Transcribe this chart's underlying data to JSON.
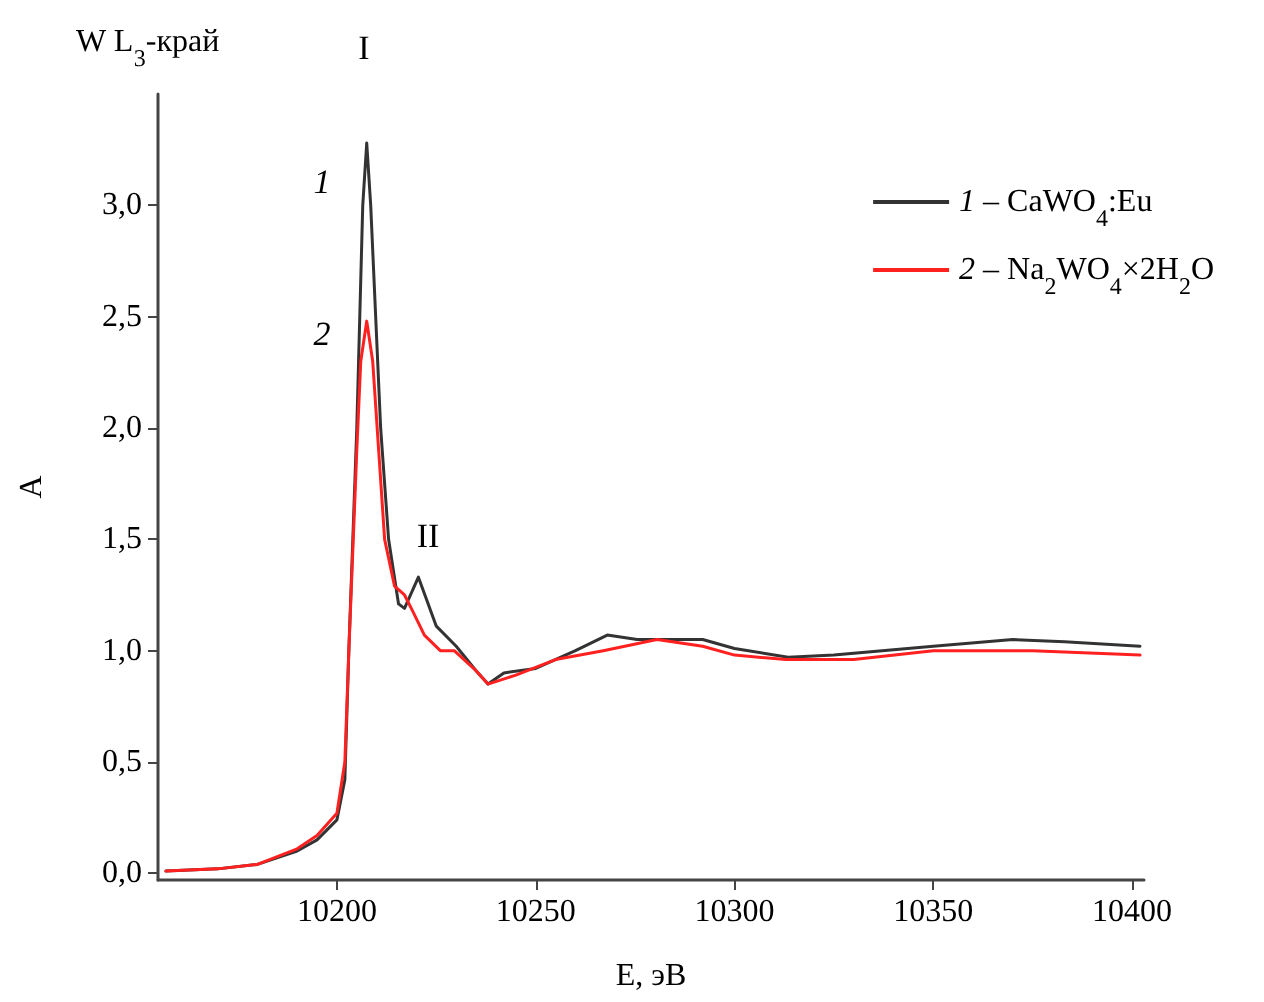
{
  "chart_data": {
    "type": "line",
    "title": "W L$_{3}$-край",
    "xlabel": "E, эВ",
    "ylabel": "A",
    "xlim": [
      10155,
      10403
    ],
    "xticks": [
      10200,
      10250,
      10300,
      10350,
      10400
    ],
    "ylim": [
      -0.03,
      3.5
    ],
    "yticks": [
      {
        "value": 0,
        "label": "0,0"
      },
      {
        "value": 0.5,
        "label": "0,5"
      },
      {
        "value": 1,
        "label": "1,0"
      },
      {
        "value": 1.5,
        "label": "1,5"
      },
      {
        "value": 2,
        "label": "2,0"
      },
      {
        "value": 2.5,
        "label": "2,5"
      },
      {
        "value": 3,
        "label": "3,0"
      }
    ],
    "grid": false,
    "legend": "top right",
    "marker": "none",
    "line_style": "solid",
    "annotations": [
      "I",
      "1",
      "2",
      "II"
    ],
    "series": [
      {
        "name": "1 – CaWO$_{4}$:Eu",
        "color": "#333333",
        "x": [
          10157,
          10170,
          10180,
          10190,
          10195,
          10200,
          10202,
          10203,
          10205,
          10206.5,
          10207.5,
          10208.5,
          10211,
          10213,
          10215.5,
          10217,
          10220.5,
          10225,
          10230,
          10235,
          10238,
          10242,
          10250,
          10260,
          10268,
          10275.5,
          10285,
          10292,
          10300,
          10313.5,
          10325,
          10350,
          10370,
          10383,
          10402
        ],
        "values": [
          0.01,
          0.02,
          0.04,
          0.1,
          0.15,
          0.24,
          0.42,
          1.0,
          2.0,
          3.0,
          3.28,
          3.0,
          2.0,
          1.5,
          1.21,
          1.19,
          1.33,
          1.11,
          1.02,
          0.91,
          0.85,
          0.9,
          0.92,
          1.0,
          1.07,
          1.05,
          1.05,
          1.05,
          1.01,
          0.97,
          0.98,
          1.02,
          1.05,
          1.04,
          1.02
        ]
      },
      {
        "name": "2 – Na$_{2}$WO$_{4}$×2H$_{2}$O",
        "color": "#ff2020",
        "x": [
          10157,
          10170,
          10180,
          10190,
          10195,
          10200,
          10202,
          10203,
          10205,
          10206,
          10207.5,
          10209,
          10210.5,
          10212,
          10214.5,
          10217,
          10219,
          10222,
          10226,
          10229.5,
          10235,
          10238,
          10245,
          10255,
          10267,
          10280.5,
          10292,
          10300,
          10313,
          10330,
          10350,
          10375,
          10402
        ],
        "values": [
          0.01,
          0.02,
          0.04,
          0.11,
          0.17,
          0.27,
          0.5,
          1.0,
          1.9,
          2.3,
          2.48,
          2.3,
          1.9,
          1.5,
          1.29,
          1.25,
          1.18,
          1.07,
          1.0,
          1.0,
          0.91,
          0.85,
          0.89,
          0.96,
          1.0,
          1.05,
          1.02,
          0.98,
          0.96,
          0.96,
          1.0,
          1.0,
          0.98
        ]
      }
    ]
  }
}
